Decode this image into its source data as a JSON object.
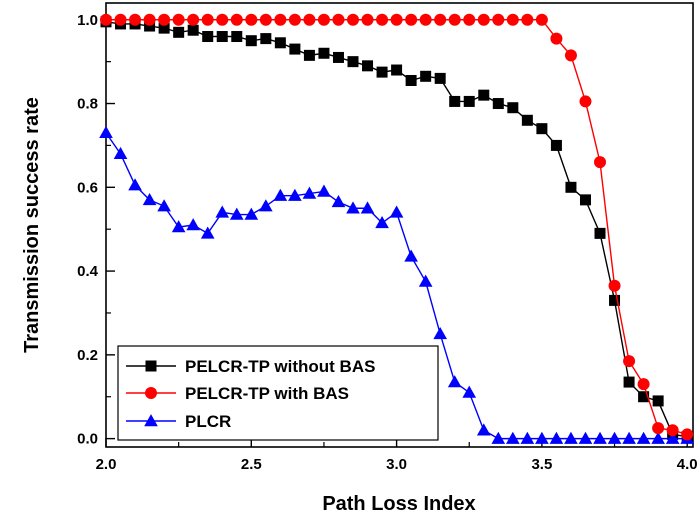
{
  "chart_data": {
    "type": "line",
    "xlabel": "Path Loss Index",
    "ylabel": "Transmission success rate",
    "xlim": [
      2.0,
      4.02
    ],
    "ylim": [
      -0.02,
      1.04
    ],
    "xticks": [
      "2.0",
      "2.5",
      "3.0",
      "3.5",
      "4.0"
    ],
    "yticks": [
      "0.0",
      "0.2",
      "0.4",
      "0.6",
      "0.8",
      "1.0"
    ],
    "legend_position": "bottom-left",
    "x": [
      2.0,
      2.05,
      2.1,
      2.15,
      2.2,
      2.25,
      2.3,
      2.35,
      2.4,
      2.45,
      2.5,
      2.55,
      2.6,
      2.65,
      2.7,
      2.75,
      2.8,
      2.85,
      2.9,
      2.95,
      3.0,
      3.05,
      3.1,
      3.15,
      3.2,
      3.25,
      3.3,
      3.35,
      3.4,
      3.45,
      3.5,
      3.55,
      3.6,
      3.65,
      3.7,
      3.75,
      3.8,
      3.85,
      3.9,
      3.95,
      4.0
    ],
    "series": [
      {
        "name": "PELCR-TP without BAS",
        "color": "#000000",
        "marker": "square",
        "values": [
          0.995,
          0.99,
          0.99,
          0.985,
          0.98,
          0.97,
          0.975,
          0.96,
          0.96,
          0.96,
          0.95,
          0.955,
          0.945,
          0.93,
          0.915,
          0.92,
          0.91,
          0.9,
          0.89,
          0.875,
          0.88,
          0.855,
          0.865,
          0.86,
          0.805,
          0.805,
          0.82,
          0.8,
          0.79,
          0.76,
          0.74,
          0.7,
          0.6,
          0.57,
          0.49,
          0.33,
          0.135,
          0.1,
          0.09,
          0.01,
          0.005
        ]
      },
      {
        "name": "PELCR-TP with BAS",
        "color": "#ff0000",
        "marker": "circle",
        "values": [
          1.0,
          1.0,
          1.0,
          1.0,
          1.0,
          1.0,
          1.0,
          1.0,
          1.0,
          1.0,
          1.0,
          1.0,
          1.0,
          1.0,
          1.0,
          1.0,
          1.0,
          1.0,
          1.0,
          1.0,
          1.0,
          1.0,
          1.0,
          1.0,
          1.0,
          1.0,
          1.0,
          1.0,
          1.0,
          1.0,
          1.0,
          0.955,
          0.915,
          0.805,
          0.66,
          0.365,
          0.185,
          0.13,
          0.025,
          0.02,
          0.01
        ]
      },
      {
        "name": "PLCR",
        "color": "#0000ff",
        "marker": "triangle",
        "values": [
          0.73,
          0.68,
          0.605,
          0.57,
          0.555,
          0.505,
          0.51,
          0.49,
          0.54,
          0.535,
          0.535,
          0.555,
          0.58,
          0.58,
          0.585,
          0.59,
          0.565,
          0.55,
          0.55,
          0.515,
          0.54,
          0.435,
          0.375,
          0.25,
          0.135,
          0.11,
          0.02,
          0.0,
          0.0,
          0.0,
          0.0,
          0.0,
          0.0,
          0.0,
          0.0,
          0.0,
          0.0,
          0.0,
          0.0,
          0.0,
          0.0
        ]
      }
    ]
  }
}
